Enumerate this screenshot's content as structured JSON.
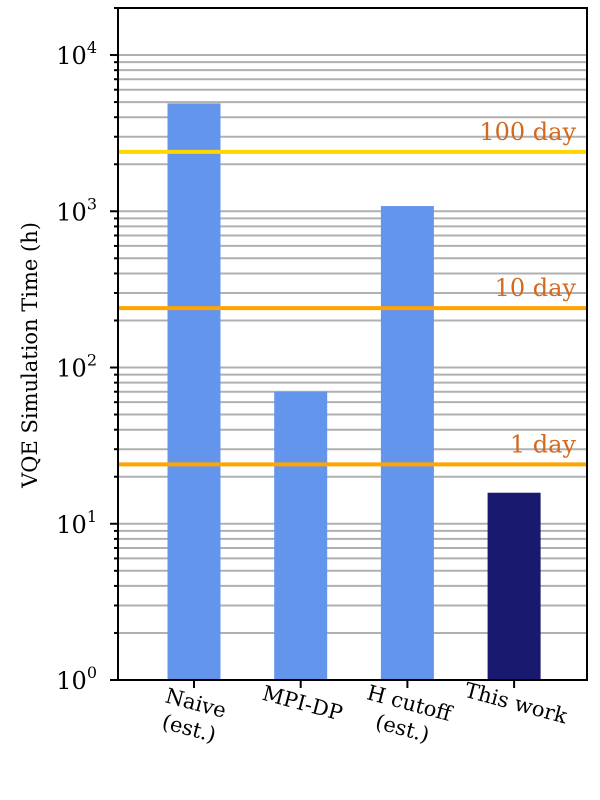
{
  "chart_data": {
    "type": "bar",
    "ylabel": "VQE Simulation Time (h)",
    "yscale": "log",
    "ylim": [
      1,
      20000
    ],
    "grid": "y-minor-and-major",
    "categories": [
      [
        "Naive",
        "(est.)"
      ],
      [
        "MPI-DP"
      ],
      [
        "H cutoff",
        "(est.)"
      ],
      [
        "This work"
      ]
    ],
    "values": [
      4900,
      70,
      1080,
      15.8
    ],
    "bar_colors": [
      "#6495ED",
      "#6495ED",
      "#6495ED",
      "#191970"
    ],
    "y_ticks": [
      {
        "value": 1,
        "base": "10",
        "exp": "0"
      },
      {
        "value": 10,
        "base": "10",
        "exp": "1"
      },
      {
        "value": 100,
        "base": "10",
        "exp": "2"
      },
      {
        "value": 1000,
        "base": "10",
        "exp": "3"
      },
      {
        "value": 10000,
        "base": "10",
        "exp": "4"
      }
    ],
    "reference_lines": [
      {
        "value": 2400,
        "label": "100 day",
        "color": "#FFD700",
        "label_color": "#D2691E"
      },
      {
        "value": 240,
        "label": "10 day",
        "color": "#FFA500",
        "label_color": "#D2691E"
      },
      {
        "value": 24,
        "label": "1 day",
        "color": "#FFA500",
        "label_color": "#D2691E"
      }
    ]
  }
}
